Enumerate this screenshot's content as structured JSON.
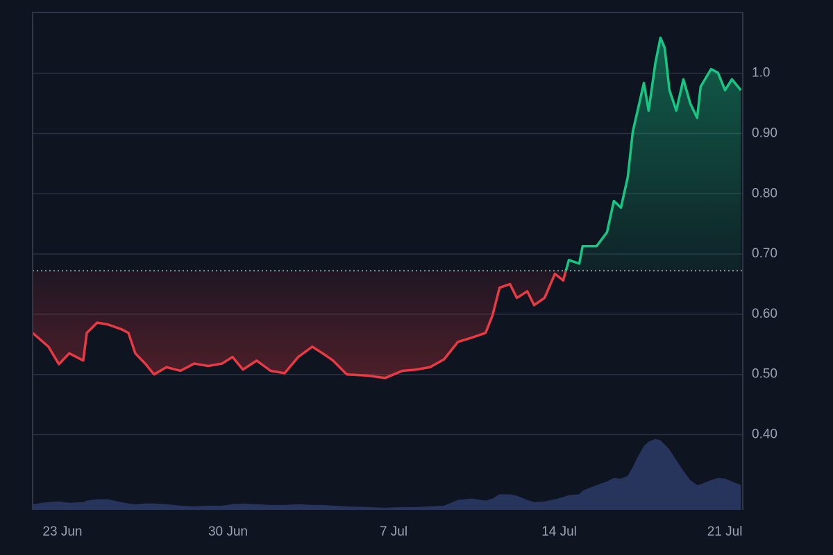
{
  "chart_data": {
    "type": "baseline",
    "x": [
      172.74,
      173.41,
      173.85,
      174.29,
      174.88,
      175.03,
      175.47,
      175.91,
      176.49,
      176.79,
      177.08,
      177.52,
      177.87,
      178.4,
      178.99,
      179.57,
      180.16,
      180.75,
      181.19,
      181.63,
      182.21,
      182.8,
      183.39,
      183.97,
      184.56,
      185.0,
      185.44,
      186.02,
      186.9,
      187.64,
      188.37,
      188.96,
      189.54,
      190.13,
      190.72,
      191.3,
      191.89,
      192.18,
      192.48,
      192.92,
      193.21,
      193.65,
      193.94,
      194.38,
      194.82,
      195.17,
      195.41,
      195.85,
      195.99,
      196.58,
      197.02,
      197.31,
      197.61,
      197.9,
      198.11,
      198.28,
      198.58,
      198.78,
      199.07,
      199.28,
      199.46,
      199.66,
      199.95,
      200.25,
      200.54,
      200.83,
      200.98,
      201.42,
      201.71,
      202.01,
      202.3,
      202.68
    ],
    "series": [
      {
        "values": [
          0.569,
          0.546,
          0.517,
          0.535,
          0.523,
          0.569,
          0.586,
          0.583,
          0.575,
          0.569,
          0.535,
          0.517,
          0.5,
          0.512,
          0.506,
          0.518,
          0.514,
          0.518,
          0.529,
          0.508,
          0.523,
          0.506,
          0.502,
          0.529,
          0.546,
          0.535,
          0.523,
          0.5,
          0.498,
          0.494,
          0.506,
          0.508,
          0.512,
          0.525,
          0.554,
          0.561,
          0.569,
          0.598,
          0.644,
          0.65,
          0.627,
          0.638,
          0.615,
          0.627,
          0.667,
          0.656,
          0.69,
          0.684,
          0.713,
          0.713,
          0.736,
          0.788,
          0.777,
          0.828,
          0.903,
          0.932,
          0.984,
          0.938,
          1.018,
          1.059,
          1.042,
          0.972,
          0.938,
          0.99,
          0.95,
          0.926,
          0.978,
          1.007,
          1.001,
          0.972,
          0.99,
          0.972
        ]
      },
      {
        "axis": "y2",
        "color": "#2c3a66",
        "values": [
          8,
          11,
          12,
          10,
          11,
          13,
          15,
          15,
          11,
          9,
          8,
          9,
          9,
          8,
          6,
          5,
          6,
          6,
          8,
          9,
          8,
          7,
          7,
          8,
          7,
          7,
          6,
          5,
          4,
          3,
          4,
          4,
          5,
          6,
          14,
          16,
          13,
          16,
          22,
          22,
          20,
          14,
          11,
          12,
          15,
          18,
          21,
          22,
          27,
          35,
          40,
          45,
          44,
          48,
          60,
          72,
          90,
          96,
          100,
          98,
          92,
          85,
          70,
          55,
          42,
          35,
          36,
          42,
          45,
          44,
          40,
          35
        ]
      }
    ],
    "baseline": 0.672,
    "up_color": "#16c784",
    "down_color": "#ea3943",
    "xlim": [
      172.74,
      202.76
    ],
    "xticks": [
      {
        "value": 174,
        "label": "23 Jun"
      },
      {
        "value": 181,
        "label": "30 Jun"
      },
      {
        "value": 188,
        "label": "7 Jul"
      },
      {
        "value": 195,
        "label": "14 Jul"
      },
      {
        "value": 202,
        "label": "21 Jul"
      }
    ],
    "ylim": [
      0.275,
      1.101
    ],
    "yticks": [
      {
        "value": 1.0,
        "label": "1.0"
      },
      {
        "value": 0.9,
        "label": "0.90"
      },
      {
        "value": 0.8,
        "label": "0.80"
      },
      {
        "value": 0.7,
        "label": "0.70"
      },
      {
        "value": 0.6,
        "label": "0.60"
      },
      {
        "value": 0.5,
        "label": "0.50"
      },
      {
        "value": 0.4,
        "label": "0.40"
      }
    ],
    "y2lim": [
      0,
      700
    ],
    "grid": true
  }
}
